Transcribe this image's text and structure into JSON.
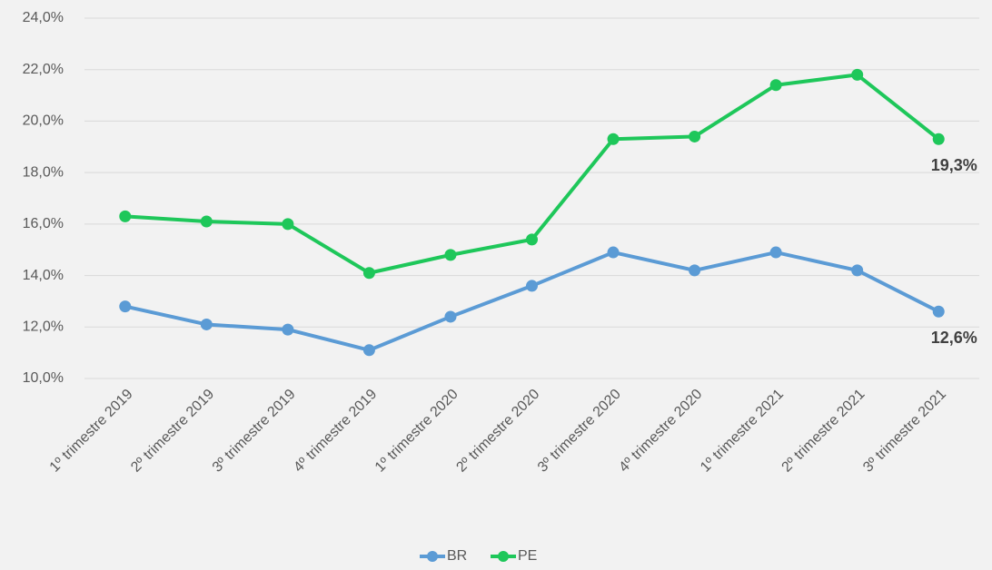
{
  "chart_data": {
    "type": "line",
    "categories": [
      "1º trimestre 2019",
      "2º trimestre 2019",
      "3º trimestre 2019",
      "4º trimestre 2019",
      "1º trimestre 2020",
      "2º trimestre 2020",
      "3º trimestre 2020",
      "4º trimestre 2020",
      "1º trimestre 2021",
      "2º trimestre 2021",
      "3º trimestre 2021"
    ],
    "series": [
      {
        "name": "BR",
        "color": "#5b9bd5",
        "values": [
          12.8,
          12.1,
          11.9,
          11.1,
          12.4,
          13.6,
          14.9,
          14.2,
          14.9,
          14.2,
          12.6
        ],
        "value_labels": [
          null,
          null,
          null,
          null,
          null,
          null,
          null,
          null,
          null,
          null,
          "12,6%"
        ]
      },
      {
        "name": "PE",
        "color": "#1ec75a",
        "values": [
          16.3,
          16.1,
          16.0,
          14.1,
          14.8,
          15.4,
          19.3,
          19.4,
          21.4,
          21.8,
          19.3
        ],
        "value_labels": [
          null,
          null,
          null,
          null,
          null,
          null,
          null,
          null,
          null,
          null,
          "19,3%"
        ]
      }
    ],
    "ylim": [
      10,
      24
    ],
    "yticks": [
      {
        "value": 10,
        "label": "10,0%"
      },
      {
        "value": 12,
        "label": "12,0%"
      },
      {
        "value": 14,
        "label": "14,0%"
      },
      {
        "value": 16,
        "label": "16,0%"
      },
      {
        "value": 18,
        "label": "18,0%"
      },
      {
        "value": 20,
        "label": "20,0%"
      },
      {
        "value": 22,
        "label": "22,0%"
      },
      {
        "value": 24,
        "label": "24,0%"
      }
    ],
    "grid": true,
    "legend": "bottom"
  }
}
